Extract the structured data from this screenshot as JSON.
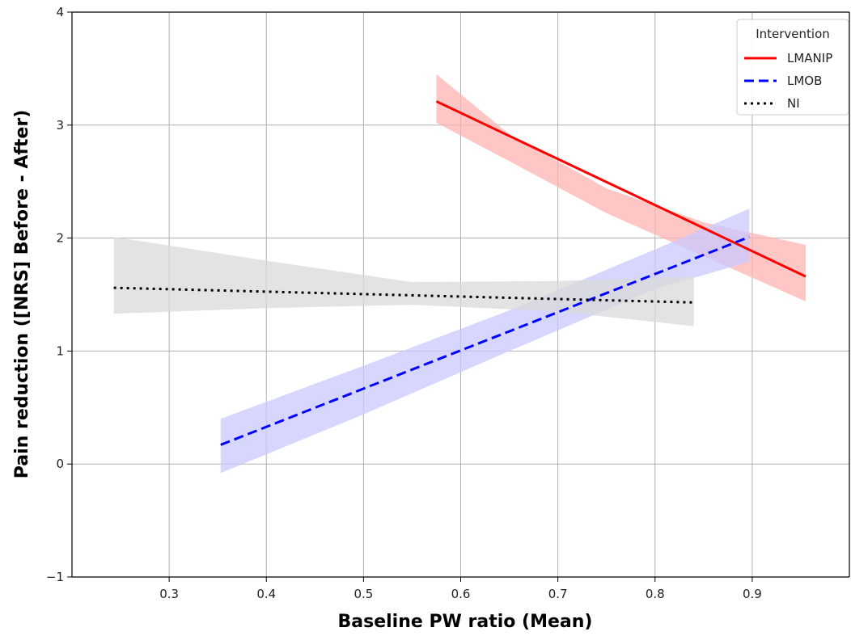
{
  "chart_data": {
    "type": "line",
    "title": "",
    "xlabel": "Baseline PW ratio (Mean)",
    "ylabel": "Pain reduction ([NRS] Before - After)",
    "xlim": [
      0.2,
      1.0
    ],
    "ylim": [
      -1,
      4
    ],
    "xticks": [
      0.3,
      0.4,
      0.5,
      0.6,
      0.7,
      0.8,
      0.9
    ],
    "yticks": [
      -1,
      0,
      1,
      2,
      3,
      4
    ],
    "xtick_labels": [
      "0.3",
      "0.4",
      "0.5",
      "0.6",
      "0.7",
      "0.8",
      "0.9"
    ],
    "ytick_labels": [
      "−1",
      "0",
      "1",
      "2",
      "3",
      "4"
    ],
    "grid": true,
    "legend": {
      "title": "Intervention",
      "placement": "top-right"
    },
    "series": [
      {
        "name": "LMANIP",
        "color": "#ff0000",
        "band_color": "#ffb3b3",
        "line_style": "solid",
        "x": [
          0.575,
          0.955
        ],
        "y": [
          3.21,
          1.66
        ],
        "band_x": [
          0.575,
          0.65,
          0.75,
          0.85,
          0.955
        ],
        "band_lower": [
          3.02,
          2.68,
          2.22,
          1.84,
          1.44
        ],
        "band_upper": [
          3.45,
          2.92,
          2.44,
          2.14,
          1.94
        ]
      },
      {
        "name": "LMOB",
        "color": "#0000ff",
        "band_color": "#c8c8ff",
        "line_style": "dashed",
        "x": [
          0.353,
          0.897
        ],
        "y": [
          0.17,
          2.01
        ],
        "band_x": [
          0.353,
          0.5,
          0.65,
          0.8,
          0.897
        ],
        "band_lower": [
          -0.08,
          0.44,
          1.0,
          1.55,
          1.79
        ],
        "band_upper": [
          0.4,
          0.87,
          1.36,
          1.9,
          2.26
        ]
      },
      {
        "name": "NI",
        "color": "#000000",
        "band_color": "#d9d9d9",
        "line_style": "dotted",
        "x": [
          0.243,
          0.84
        ],
        "y": [
          1.56,
          1.43
        ],
        "band_x": [
          0.243,
          0.4,
          0.55,
          0.7,
          0.84
        ],
        "band_lower": [
          1.33,
          1.38,
          1.41,
          1.35,
          1.22
        ],
        "band_upper": [
          2.01,
          1.8,
          1.61,
          1.62,
          1.66
        ]
      }
    ]
  }
}
